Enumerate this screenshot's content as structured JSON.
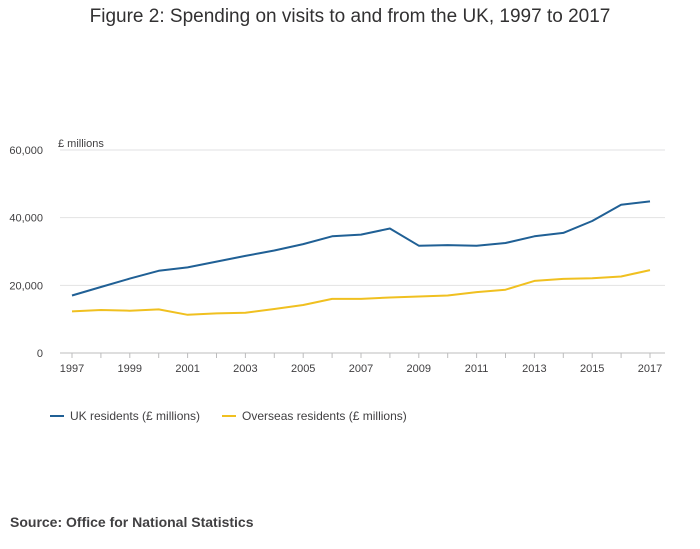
{
  "chart_data": {
    "type": "line",
    "title": "Figure 2: Spending on visits to and from the UK, 1997 to 2017",
    "ylabel": "£ millions",
    "xlabel": "",
    "x": [
      1997,
      1998,
      1999,
      2000,
      2001,
      2002,
      2003,
      2004,
      2005,
      2006,
      2007,
      2008,
      2009,
      2010,
      2011,
      2012,
      2013,
      2014,
      2015,
      2016,
      2017
    ],
    "x_ticks": [
      "1997",
      "1999",
      "2001",
      "2003",
      "2005",
      "2007",
      "2009",
      "2011",
      "2013",
      "2015",
      "2017"
    ],
    "y_ticks": [
      "0",
      "20,000",
      "40,000",
      "60,000"
    ],
    "ylim": [
      0,
      60000
    ],
    "grid": true,
    "legend": "bottom-left",
    "series": [
      {
        "name": "UK residents (£ millions)",
        "color": "#206095",
        "values": [
          17000,
          19500,
          22000,
          24300,
          25300,
          27000,
          28700,
          30300,
          32200,
          34500,
          35000,
          36800,
          31700,
          31900,
          31700,
          32500,
          34500,
          35500,
          39000,
          43800,
          44800
        ]
      },
      {
        "name": "Overseas residents (£ millions)",
        "color": "#f0c020",
        "values": [
          12300,
          12700,
          12500,
          12900,
          11300,
          11700,
          11900,
          13000,
          14200,
          16000,
          16000,
          16400,
          16700,
          17000,
          18000,
          18700,
          21300,
          21900,
          22100,
          22600,
          24500
        ]
      }
    ]
  },
  "source": "Source: Office for National Statistics"
}
